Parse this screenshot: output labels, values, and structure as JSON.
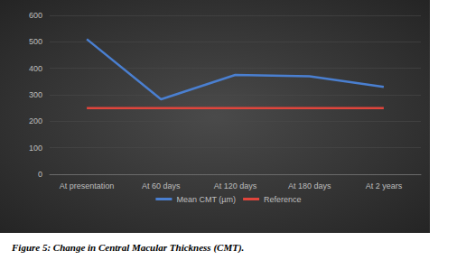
{
  "chart_data": {
    "type": "line",
    "title": "Figure 5: Change in Central Macular Thickness (CMT).",
    "categories": [
      "At presentation",
      "At 60 days",
      "At 120 days",
      "At 180 days",
      "At 2 years"
    ],
    "series": [
      {
        "name": "Mean CMT (µm)",
        "color": "#4a7fd0",
        "values": [
          510,
          283,
          375,
          370,
          330
        ]
      },
      {
        "name": "Reference",
        "color": "#e0453c",
        "values": [
          250,
          250,
          250,
          250,
          250
        ]
      }
    ],
    "ylim": [
      0,
      600
    ],
    "yticks": [
      0,
      100,
      200,
      300,
      400,
      500,
      600
    ],
    "grid": true,
    "legend": "bottom"
  }
}
